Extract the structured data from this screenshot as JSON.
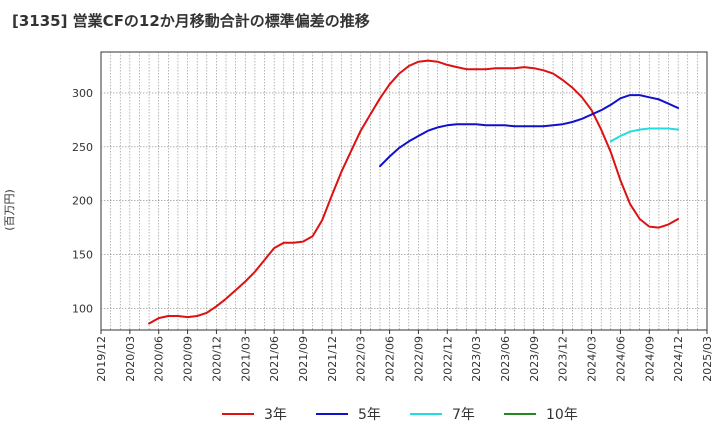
{
  "chart_data": {
    "type": "line",
    "title": "[3135]  営業CFの12か月移動合計の標準偏差の推移",
    "ylabel": "(百万円)",
    "xlabel": "",
    "ylim": [
      80,
      338
    ],
    "yticks": [
      100,
      150,
      200,
      250,
      300
    ],
    "xlim": [
      "2019-12",
      "2025-03"
    ],
    "xticks": [
      "2019/12",
      "2020/03",
      "2020/06",
      "2020/09",
      "2020/12",
      "2021/03",
      "2021/06",
      "2021/09",
      "2021/12",
      "2022/03",
      "2022/06",
      "2022/09",
      "2022/12",
      "2023/03",
      "2023/06",
      "2023/09",
      "2023/12",
      "2024/03",
      "2024/06",
      "2024/09",
      "2024/12",
      "2025/03"
    ],
    "grid": true,
    "legend_position": "bottom",
    "series": [
      {
        "name": "3年",
        "color": "#dd1111",
        "points": [
          [
            "2020-05",
            86
          ],
          [
            "2020-06",
            91
          ],
          [
            "2020-07",
            93
          ],
          [
            "2020-08",
            93
          ],
          [
            "2020-09",
            92
          ],
          [
            "2020-10",
            93
          ],
          [
            "2020-11",
            96
          ],
          [
            "2020-12",
            102
          ],
          [
            "2021-01",
            109
          ],
          [
            "2021-02",
            117
          ],
          [
            "2021-03",
            125
          ],
          [
            "2021-04",
            134
          ],
          [
            "2021-05",
            145
          ],
          [
            "2021-06",
            156
          ],
          [
            "2021-07",
            161
          ],
          [
            "2021-08",
            161
          ],
          [
            "2021-09",
            162
          ],
          [
            "2021-10",
            167
          ],
          [
            "2021-11",
            182
          ],
          [
            "2021-12",
            205
          ],
          [
            "2022-01",
            227
          ],
          [
            "2022-02",
            246
          ],
          [
            "2022-03",
            265
          ],
          [
            "2022-04",
            280
          ],
          [
            "2022-05",
            295
          ],
          [
            "2022-06",
            308
          ],
          [
            "2022-07",
            318
          ],
          [
            "2022-08",
            325
          ],
          [
            "2022-09",
            329
          ],
          [
            "2022-10",
            330
          ],
          [
            "2022-11",
            329
          ],
          [
            "2022-12",
            326
          ],
          [
            "2023-01",
            324
          ],
          [
            "2023-02",
            322
          ],
          [
            "2023-03",
            322
          ],
          [
            "2023-04",
            322
          ],
          [
            "2023-05",
            323
          ],
          [
            "2023-06",
            323
          ],
          [
            "2023-07",
            323
          ],
          [
            "2023-08",
            324
          ],
          [
            "2023-09",
            323
          ],
          [
            "2023-10",
            321
          ],
          [
            "2023-11",
            318
          ],
          [
            "2023-12",
            312
          ],
          [
            "2024-01",
            305
          ],
          [
            "2024-02",
            296
          ],
          [
            "2024-03",
            284
          ],
          [
            "2024-04",
            266
          ],
          [
            "2024-05",
            245
          ],
          [
            "2024-06",
            219
          ],
          [
            "2024-07",
            197
          ],
          [
            "2024-08",
            183
          ],
          [
            "2024-09",
            176
          ],
          [
            "2024-10",
            175
          ],
          [
            "2024-11",
            178
          ],
          [
            "2024-12",
            183
          ]
        ]
      },
      {
        "name": "5年",
        "color": "#1111cc",
        "points": [
          [
            "2022-05",
            232
          ],
          [
            "2022-06",
            241
          ],
          [
            "2022-07",
            249
          ],
          [
            "2022-08",
            255
          ],
          [
            "2022-09",
            260
          ],
          [
            "2022-10",
            265
          ],
          [
            "2022-11",
            268
          ],
          [
            "2022-12",
            270
          ],
          [
            "2023-01",
            271
          ],
          [
            "2023-02",
            271
          ],
          [
            "2023-03",
            271
          ],
          [
            "2023-04",
            270
          ],
          [
            "2023-05",
            270
          ],
          [
            "2023-06",
            270
          ],
          [
            "2023-07",
            269
          ],
          [
            "2023-08",
            269
          ],
          [
            "2023-09",
            269
          ],
          [
            "2023-10",
            269
          ],
          [
            "2023-11",
            270
          ],
          [
            "2023-12",
            271
          ],
          [
            "2024-01",
            273
          ],
          [
            "2024-02",
            276
          ],
          [
            "2024-03",
            280
          ],
          [
            "2024-04",
            284
          ],
          [
            "2024-05",
            289
          ],
          [
            "2024-06",
            295
          ],
          [
            "2024-07",
            298
          ],
          [
            "2024-08",
            298
          ],
          [
            "2024-09",
            296
          ],
          [
            "2024-10",
            294
          ],
          [
            "2024-11",
            290
          ],
          [
            "2024-12",
            286
          ]
        ]
      },
      {
        "name": "7年",
        "color": "#22dddd",
        "points": [
          [
            "2024-05",
            255
          ],
          [
            "2024-06",
            260
          ],
          [
            "2024-07",
            264
          ],
          [
            "2024-08",
            266
          ],
          [
            "2024-09",
            267
          ],
          [
            "2024-10",
            267
          ],
          [
            "2024-11",
            267
          ],
          [
            "2024-12",
            266
          ]
        ]
      },
      {
        "name": "10年",
        "color": "#228822",
        "points": []
      }
    ]
  }
}
